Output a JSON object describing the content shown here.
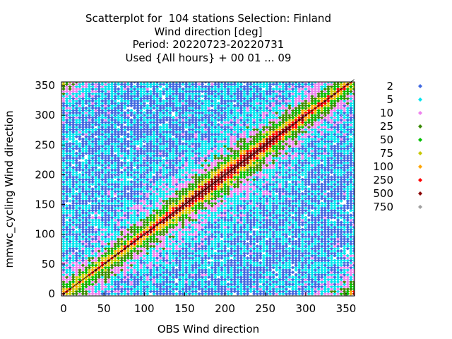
{
  "chart_data": {
    "type": "heatmap",
    "title_lines": [
      "Scatterplot for  104 stations Selection: Finland",
      "Wind direction [deg]",
      "Period: 20220723-20220731",
      "Used {All hours} + 00 01 ... 09"
    ],
    "xlabel": "OBS Wind direction",
    "ylabel": "mmwc_cycling Wind direction",
    "xlim": [
      0,
      360
    ],
    "ylim": [
      0,
      360
    ],
    "xticks": [
      0,
      50,
      100,
      150,
      200,
      250,
      300,
      350
    ],
    "yticks": [
      0,
      50,
      100,
      150,
      200,
      250,
      300,
      350
    ],
    "legend_position": "right",
    "legend": [
      {
        "label": "2",
        "color": "#4169e1"
      },
      {
        "label": "5",
        "color": "#00e5ee"
      },
      {
        "label": "10",
        "color": "#ee82ee"
      },
      {
        "label": "25",
        "color": "#3a8a00"
      },
      {
        "label": "50",
        "color": "#00c000"
      },
      {
        "label": "75",
        "color": "#c8c800"
      },
      {
        "label": "100",
        "color": "#ffa500"
      },
      {
        "label": "250",
        "color": "#ff0000"
      },
      {
        "label": "500",
        "color": "#8b0000"
      },
      {
        "label": "750",
        "color": "#a0a0a0"
      }
    ],
    "diagonal_line": true,
    "grid": true
  }
}
